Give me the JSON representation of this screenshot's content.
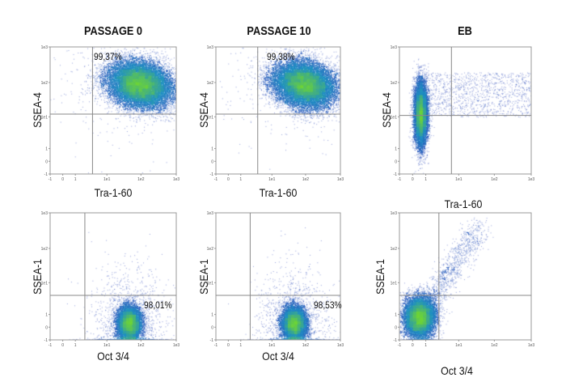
{
  "chart_data": [
    {
      "id": "p0-top",
      "type": "scatter",
      "title": "PASSAGE 0",
      "xlabel": "Tra-1-60",
      "ylabel": "SSEA-4",
      "xticks": [
        "-1",
        "0",
        "1",
        "1e1",
        "1e2",
        "1e3"
      ],
      "yticks": [
        "-1",
        "0",
        "1",
        "1e1",
        "1e2",
        "1e3"
      ],
      "gate": {
        "x": 3.5,
        "y": 12
      },
      "annotation": "99,37%",
      "population_center": {
        "x": 90,
        "y": 90
      }
    },
    {
      "id": "p10-top",
      "type": "scatter",
      "title": "PASSAGE 10",
      "xlabel": "Tra-1-60",
      "ylabel": "SSEA-4",
      "xticks": [
        "-1",
        "0",
        "1",
        "1e1",
        "1e2",
        "1e3"
      ],
      "yticks": [
        "-1",
        "0",
        "1",
        "1e1",
        "1e2",
        "1e3"
      ],
      "gate": {
        "x": 3.5,
        "y": 12
      },
      "annotation": "99,38%",
      "population_center": {
        "x": 90,
        "y": 90
      }
    },
    {
      "id": "eb-top",
      "type": "scatter",
      "title": "EB",
      "xlabel": "Tra-1-60",
      "ylabel": "SSEA-4",
      "xticks": [
        "-1",
        "0",
        "1",
        "1e1",
        "1e2",
        "1e3"
      ],
      "yticks": [
        "-1",
        "0",
        "1",
        "1e1",
        "1e2",
        "1e3"
      ],
      "gate": {
        "x": 6,
        "y": 11
      },
      "annotation": "",
      "population_center": {
        "x": 0.6,
        "y": 12
      }
    },
    {
      "id": "p0-bottom",
      "type": "scatter",
      "title": "",
      "xlabel": "Oct 3/4",
      "ylabel": "SSEA-1",
      "xticks": [
        "-1",
        "0",
        "1",
        "1e1",
        "1e2",
        "1e3"
      ],
      "yticks": [
        "-1",
        "0",
        "1",
        "1e1",
        "1e2",
        "1e3"
      ],
      "gate": {
        "x": 2,
        "y": 4
      },
      "annotation": "98,01%",
      "population_center": {
        "x": 45,
        "y": 0.3
      }
    },
    {
      "id": "p10-bottom",
      "type": "scatter",
      "title": "",
      "xlabel": "Oct 3/4",
      "ylabel": "SSEA-1",
      "xticks": [
        "-1",
        "0",
        "1",
        "1e1",
        "1e2",
        "1e3"
      ],
      "yticks": [
        "-1",
        "0",
        "1",
        "1e1",
        "1e2",
        "1e3"
      ],
      "gate": {
        "x": 2,
        "y": 4
      },
      "annotation": "98,53%",
      "population_center": {
        "x": 45,
        "y": 0.3
      }
    },
    {
      "id": "eb-bottom",
      "type": "scatter",
      "title": "",
      "xlabel": "Oct 3/4",
      "ylabel": "SSEA-1",
      "xticks": [
        "-1",
        "0",
        "1",
        "1e1",
        "1e2",
        "1e3"
      ],
      "yticks": [
        "-1",
        "0",
        "1",
        "1e1",
        "1e2",
        "1e3"
      ],
      "gate": {
        "x": 2.5,
        "y": 4
      },
      "annotation": "",
      "population_center": {
        "x": 0.5,
        "y": 0.8
      }
    }
  ],
  "colors": {
    "low": "#2b3bb8",
    "mid": "#1f8fc2",
    "high": "#6fd43a",
    "gate": "#888888"
  }
}
